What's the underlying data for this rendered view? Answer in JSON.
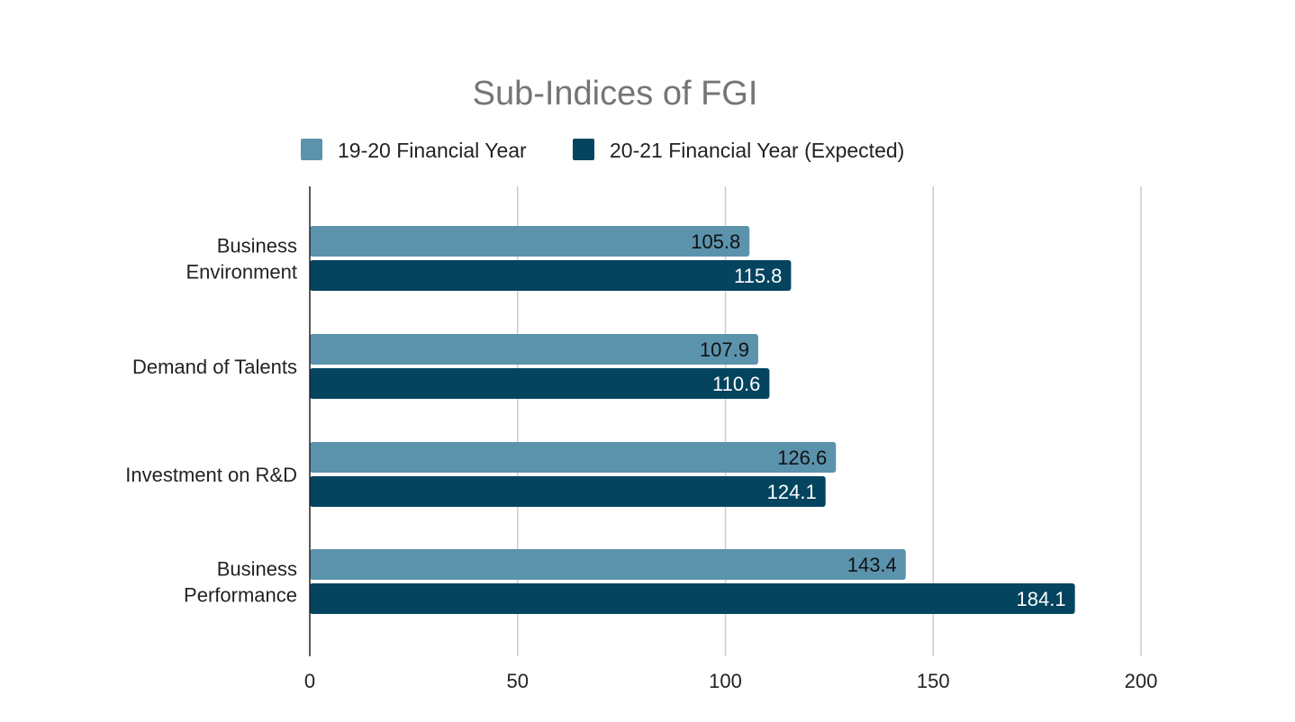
{
  "chart_data": {
    "type": "bar",
    "orientation": "horizontal",
    "title": "Sub-Indices of FGI",
    "categories": [
      [
        "Business",
        "Environment"
      ],
      [
        "Demand of Talents"
      ],
      [
        "Investment on R&D"
      ],
      [
        "Business",
        "Performance"
      ]
    ],
    "series": [
      {
        "name": "19-20 Financial Year",
        "color": "#5b93ad",
        "label_color": "#111111",
        "values": [
          105.8,
          107.9,
          126.6,
          143.4
        ]
      },
      {
        "name": "20-21 Financial Year (Expected)",
        "color": "#04445f",
        "label_color": "#ffffff",
        "values": [
          115.8,
          110.6,
          124.1,
          184.1
        ]
      }
    ],
    "xlim": [
      0,
      200
    ],
    "xticks": [
      0,
      50,
      100,
      150,
      200
    ],
    "grid": "vertical",
    "legend_position": "top-center",
    "colors": {
      "grid": "#cccccc",
      "axis": "#222222",
      "title": "#757575"
    }
  }
}
